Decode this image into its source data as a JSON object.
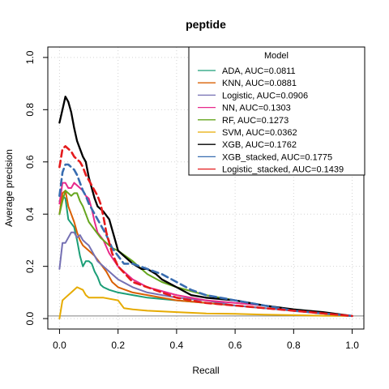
{
  "chart_data": {
    "type": "line",
    "title": "peptide",
    "xlabel": "Recall",
    "ylabel": "Average precision",
    "xlim": [
      -0.04,
      1.04
    ],
    "ylim": [
      -0.04,
      1.04
    ],
    "xticks": [
      "0.0",
      "0.2",
      "0.4",
      "0.6",
      "0.8",
      "1.0"
    ],
    "yticks": [
      "0.0",
      "0.2",
      "0.4",
      "0.6",
      "0.8",
      "1.0"
    ],
    "grid": true,
    "reference_line_y": 0.01,
    "legend": {
      "title": "Model",
      "position": "top-right"
    },
    "series": [
      {
        "name": "ADA, AUC=0.0811",
        "color": "#1b9e77",
        "dash": false,
        "width": 2,
        "points": [
          [
            0.0,
            0.45
          ],
          [
            0.01,
            0.47
          ],
          [
            0.02,
            0.46
          ],
          [
            0.03,
            0.38
          ],
          [
            0.05,
            0.35
          ],
          [
            0.06,
            0.3
          ],
          [
            0.07,
            0.24
          ],
          [
            0.08,
            0.2
          ],
          [
            0.09,
            0.22
          ],
          [
            0.1,
            0.22
          ],
          [
            0.11,
            0.21
          ],
          [
            0.12,
            0.18
          ],
          [
            0.13,
            0.16
          ],
          [
            0.14,
            0.13
          ],
          [
            0.15,
            0.12
          ],
          [
            0.17,
            0.11
          ],
          [
            0.2,
            0.1
          ],
          [
            0.25,
            0.09
          ],
          [
            0.3,
            0.08
          ],
          [
            0.4,
            0.07
          ],
          [
            0.5,
            0.06
          ],
          [
            0.6,
            0.05
          ],
          [
            0.7,
            0.04
          ],
          [
            0.8,
            0.03
          ],
          [
            0.9,
            0.02
          ],
          [
            1.0,
            0.01
          ]
        ]
      },
      {
        "name": "KNN, AUC=0.0881",
        "color": "#d95f02",
        "dash": false,
        "width": 2,
        "points": [
          [
            0.0,
            0.4
          ],
          [
            0.01,
            0.48
          ],
          [
            0.02,
            0.49
          ],
          [
            0.03,
            0.43
          ],
          [
            0.04,
            0.4
          ],
          [
            0.05,
            0.37
          ],
          [
            0.06,
            0.33
          ],
          [
            0.07,
            0.3
          ],
          [
            0.08,
            0.28
          ],
          [
            0.1,
            0.26
          ],
          [
            0.12,
            0.24
          ],
          [
            0.14,
            0.21
          ],
          [
            0.16,
            0.18
          ],
          [
            0.18,
            0.14
          ],
          [
            0.2,
            0.12
          ],
          [
            0.25,
            0.1
          ],
          [
            0.3,
            0.09
          ],
          [
            0.4,
            0.07
          ],
          [
            0.5,
            0.06
          ],
          [
            0.6,
            0.05
          ],
          [
            0.7,
            0.04
          ],
          [
            0.8,
            0.03
          ],
          [
            0.9,
            0.02
          ],
          [
            1.0,
            0.01
          ]
        ]
      },
      {
        "name": "Logistic, AUC=0.0906",
        "color": "#7570b3",
        "dash": false,
        "width": 2,
        "points": [
          [
            0.0,
            0.19
          ],
          [
            0.01,
            0.29
          ],
          [
            0.02,
            0.29
          ],
          [
            0.03,
            0.31
          ],
          [
            0.04,
            0.33
          ],
          [
            0.05,
            0.33
          ],
          [
            0.06,
            0.31
          ],
          [
            0.07,
            0.32
          ],
          [
            0.08,
            0.3
          ],
          [
            0.09,
            0.29
          ],
          [
            0.1,
            0.28
          ],
          [
            0.11,
            0.26
          ],
          [
            0.12,
            0.24
          ],
          [
            0.13,
            0.22
          ],
          [
            0.15,
            0.2
          ],
          [
            0.17,
            0.18
          ],
          [
            0.2,
            0.15
          ],
          [
            0.25,
            0.12
          ],
          [
            0.3,
            0.1
          ],
          [
            0.4,
            0.08
          ],
          [
            0.5,
            0.07
          ],
          [
            0.6,
            0.05
          ],
          [
            0.7,
            0.04
          ],
          [
            0.8,
            0.03
          ],
          [
            0.9,
            0.02
          ],
          [
            1.0,
            0.01
          ]
        ]
      },
      {
        "name": "NN, AUC=0.1303",
        "color": "#e7298a",
        "dash": false,
        "width": 2,
        "points": [
          [
            0.0,
            0.44
          ],
          [
            0.01,
            0.52
          ],
          [
            0.02,
            0.52
          ],
          [
            0.03,
            0.5
          ],
          [
            0.04,
            0.5
          ],
          [
            0.05,
            0.52
          ],
          [
            0.06,
            0.51
          ],
          [
            0.07,
            0.5
          ],
          [
            0.08,
            0.49
          ],
          [
            0.09,
            0.47
          ],
          [
            0.1,
            0.46
          ],
          [
            0.11,
            0.42
          ],
          [
            0.12,
            0.37
          ],
          [
            0.13,
            0.33
          ],
          [
            0.15,
            0.3
          ],
          [
            0.17,
            0.25
          ],
          [
            0.2,
            0.2
          ],
          [
            0.25,
            0.15
          ],
          [
            0.3,
            0.12
          ],
          [
            0.4,
            0.09
          ],
          [
            0.5,
            0.07
          ],
          [
            0.6,
            0.06
          ],
          [
            0.7,
            0.05
          ],
          [
            0.8,
            0.03
          ],
          [
            0.9,
            0.02
          ],
          [
            1.0,
            0.01
          ]
        ]
      },
      {
        "name": "RF, AUC=0.1273",
        "color": "#66a61e",
        "dash": false,
        "width": 2,
        "points": [
          [
            0.0,
            0.4
          ],
          [
            0.01,
            0.45
          ],
          [
            0.02,
            0.49
          ],
          [
            0.03,
            0.48
          ],
          [
            0.04,
            0.47
          ],
          [
            0.05,
            0.48
          ],
          [
            0.06,
            0.48
          ],
          [
            0.07,
            0.45
          ],
          [
            0.08,
            0.43
          ],
          [
            0.09,
            0.4
          ],
          [
            0.1,
            0.37
          ],
          [
            0.12,
            0.34
          ],
          [
            0.14,
            0.31
          ],
          [
            0.16,
            0.29
          ],
          [
            0.18,
            0.27
          ],
          [
            0.2,
            0.26
          ],
          [
            0.25,
            0.22
          ],
          [
            0.3,
            0.17
          ],
          [
            0.35,
            0.14
          ],
          [
            0.4,
            0.12
          ],
          [
            0.5,
            0.09
          ],
          [
            0.6,
            0.07
          ],
          [
            0.7,
            0.05
          ],
          [
            0.8,
            0.03
          ],
          [
            0.9,
            0.02
          ],
          [
            1.0,
            0.01
          ]
        ]
      },
      {
        "name": "SVM, AUC=0.0362",
        "color": "#e6ab02",
        "dash": false,
        "width": 2,
        "points": [
          [
            0.0,
            0.0
          ],
          [
            0.01,
            0.07
          ],
          [
            0.02,
            0.08
          ],
          [
            0.04,
            0.1
          ],
          [
            0.06,
            0.12
          ],
          [
            0.08,
            0.11
          ],
          [
            0.09,
            0.09
          ],
          [
            0.1,
            0.08
          ],
          [
            0.12,
            0.08
          ],
          [
            0.15,
            0.08
          ],
          [
            0.2,
            0.07
          ],
          [
            0.22,
            0.04
          ],
          [
            0.25,
            0.035
          ],
          [
            0.3,
            0.03
          ],
          [
            0.4,
            0.025
          ],
          [
            0.5,
            0.02
          ],
          [
            0.6,
            0.018
          ],
          [
            0.7,
            0.015
          ],
          [
            0.8,
            0.013
          ],
          [
            0.9,
            0.011
          ],
          [
            1.0,
            0.01
          ]
        ]
      },
      {
        "name": "XGB, AUC=0.1762",
        "color": "#000000",
        "dash": false,
        "width": 2.3,
        "points": [
          [
            0.0,
            0.75
          ],
          [
            0.01,
            0.8
          ],
          [
            0.02,
            0.85
          ],
          [
            0.03,
            0.83
          ],
          [
            0.04,
            0.79
          ],
          [
            0.05,
            0.73
          ],
          [
            0.06,
            0.68
          ],
          [
            0.07,
            0.65
          ],
          [
            0.08,
            0.62
          ],
          [
            0.09,
            0.6
          ],
          [
            0.1,
            0.54
          ],
          [
            0.11,
            0.5
          ],
          [
            0.12,
            0.46
          ],
          [
            0.13,
            0.43
          ],
          [
            0.15,
            0.41
          ],
          [
            0.17,
            0.38
          ],
          [
            0.19,
            0.3
          ],
          [
            0.2,
            0.26
          ],
          [
            0.22,
            0.24
          ],
          [
            0.25,
            0.21
          ],
          [
            0.28,
            0.19
          ],
          [
            0.3,
            0.19
          ],
          [
            0.33,
            0.17
          ],
          [
            0.35,
            0.15
          ],
          [
            0.4,
            0.12
          ],
          [
            0.45,
            0.09
          ],
          [
            0.5,
            0.08
          ],
          [
            0.6,
            0.07
          ],
          [
            0.7,
            0.05
          ],
          [
            0.8,
            0.035
          ],
          [
            0.9,
            0.025
          ],
          [
            1.0,
            0.01
          ]
        ]
      },
      {
        "name": "XGB_stacked, AUC=0.1775",
        "color": "#386cb0",
        "dash": true,
        "width": 2.6,
        "points": [
          [
            0.0,
            0.47
          ],
          [
            0.01,
            0.56
          ],
          [
            0.02,
            0.59
          ],
          [
            0.03,
            0.59
          ],
          [
            0.04,
            0.58
          ],
          [
            0.05,
            0.57
          ],
          [
            0.06,
            0.55
          ],
          [
            0.07,
            0.52
          ],
          [
            0.08,
            0.49
          ],
          [
            0.09,
            0.47
          ],
          [
            0.1,
            0.44
          ],
          [
            0.12,
            0.4
          ],
          [
            0.14,
            0.36
          ],
          [
            0.16,
            0.32
          ],
          [
            0.18,
            0.27
          ],
          [
            0.2,
            0.24
          ],
          [
            0.22,
            0.21
          ],
          [
            0.25,
            0.21
          ],
          [
            0.3,
            0.19
          ],
          [
            0.35,
            0.17
          ],
          [
            0.4,
            0.14
          ],
          [
            0.45,
            0.11
          ],
          [
            0.5,
            0.09
          ],
          [
            0.6,
            0.07
          ],
          [
            0.7,
            0.05
          ],
          [
            0.8,
            0.03
          ],
          [
            0.9,
            0.02
          ],
          [
            1.0,
            0.01
          ]
        ]
      },
      {
        "name": "Logistic_stacked, AUC=0.1439",
        "color": "#e41a1c",
        "dash": true,
        "width": 2.6,
        "points": [
          [
            0.0,
            0.58
          ],
          [
            0.01,
            0.65
          ],
          [
            0.02,
            0.66
          ],
          [
            0.03,
            0.65
          ],
          [
            0.04,
            0.64
          ],
          [
            0.05,
            0.62
          ],
          [
            0.06,
            0.61
          ],
          [
            0.07,
            0.6
          ],
          [
            0.08,
            0.58
          ],
          [
            0.09,
            0.55
          ],
          [
            0.1,
            0.53
          ],
          [
            0.11,
            0.51
          ],
          [
            0.12,
            0.49
          ],
          [
            0.13,
            0.47
          ],
          [
            0.14,
            0.44
          ],
          [
            0.15,
            0.39
          ],
          [
            0.16,
            0.33
          ],
          [
            0.18,
            0.25
          ],
          [
            0.2,
            0.2
          ],
          [
            0.25,
            0.14
          ],
          [
            0.3,
            0.12
          ],
          [
            0.4,
            0.08
          ],
          [
            0.5,
            0.06
          ],
          [
            0.6,
            0.05
          ],
          [
            0.7,
            0.04
          ],
          [
            0.8,
            0.03
          ],
          [
            0.9,
            0.02
          ],
          [
            1.0,
            0.01
          ]
        ]
      }
    ]
  }
}
